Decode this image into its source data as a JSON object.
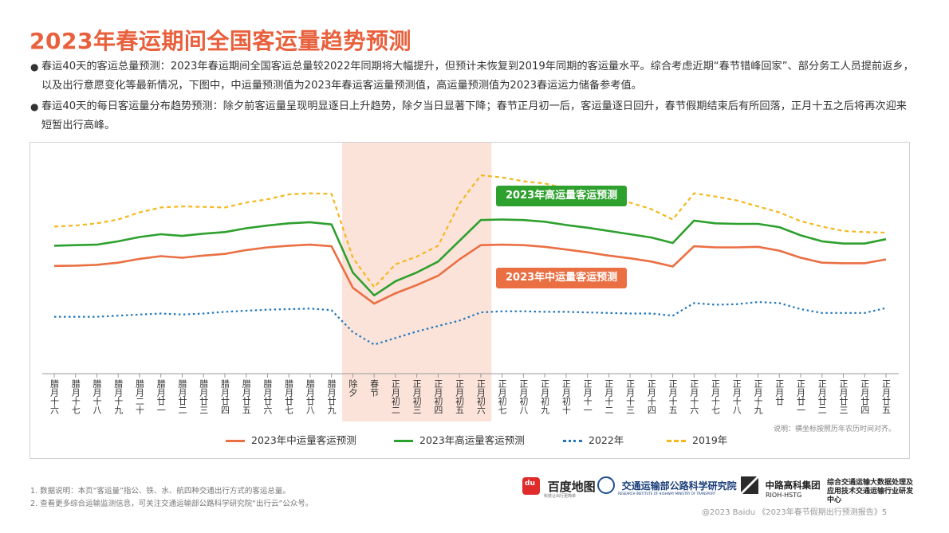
{
  "page": {
    "title": "2023年春运期间全国客运量趋势预测",
    "bullets": [
      "春运40天的客运总量预测：2023年春运期间全国客运总量较2022年同期将大幅提升，但预计未恢复到2019年同期的客运量水平。综合考虑近期“春节错峰回家”、部分务工人员提前返乡，以及出行意愿变化等最新情况，下图中，中运量预测值为2023年春运客运量预测值，高运量预测值为2023春运运力储备参考值。",
      "春运40天的每日客运量分布趋势预测：除夕前客运量呈现明显逐日上升趋势，除夕当日显著下降；春节正月初一后，客运量逐日回升，春节假期结束后有所回落，正月十五之后将再次迎来短暂出行高峰。"
    ],
    "bullet_symbol": "●",
    "note": "说明：横坐标按照历年农历时间对齐。",
    "footnotes": [
      "1.  数据说明：本页“客运量”指公、铁、水、航四种交通出行方式的客运总量。",
      "2.  查看更多综合运输监测信息，可关注交通运输部公路科学研究院“出行云”公众号。"
    ],
    "logos": {
      "baidu": "百度地图",
      "baidu_badge": "du",
      "baidu_sub": "科技让出行更简单",
      "ritm": "交通运输部公路科学研究院",
      "ritm_sub": "RESEARCH INSTITUTE OF HIGHWAY MINISTRY OF TRANSPORT",
      "rioh": "中路高科集团",
      "rioh_sub": "RIOH-HSTG",
      "center": "综合交通运输大数据处理及应用技术交通运输行业研发中心"
    },
    "credit": "@2023 Baidu 《2023年春节假期出行预测报告》5"
  },
  "chart_data": {
    "type": "line",
    "categories": [
      "腊月十六",
      "腊月十七",
      "腊月十八",
      "腊月十九",
      "腊月二十",
      "腊月廿一",
      "腊月廿二",
      "腊月廿三",
      "腊月廿四",
      "腊月廿五",
      "腊月廿六",
      "腊月廿七",
      "腊月廿八",
      "腊月廿九",
      "除夕",
      "春节",
      "正月初二",
      "正月初三",
      "正月初四",
      "正月初五",
      "正月初六",
      "正月初七",
      "正月初八",
      "正月初九",
      "正月初十",
      "正月十一",
      "正月十二",
      "正月十三",
      "正月十四",
      "正月十五",
      "正月十六",
      "正月十七",
      "正月十八",
      "正月十九",
      "正月廿",
      "正月廿一",
      "正月廿二",
      "正月廿三",
      "正月廿四",
      "正月廿五"
    ],
    "highlight": {
      "from": "除夕",
      "to": "正月初六",
      "color": "#fbe3da"
    },
    "series": [
      {
        "name": "2023年中运量客运预测",
        "color": "#ea6f43",
        "style": "solid",
        "values": [
          54.0,
          54.3,
          55.0,
          57.0,
          60.5,
          63.0,
          61.5,
          63.5,
          65.0,
          68.5,
          71.0,
          72.5,
          73.5,
          72.0,
          34.0,
          19.5,
          29.0,
          36.5,
          45.0,
          60.0,
          73.0,
          73.5,
          73.0,
          71.5,
          69.0,
          66.5,
          63.5,
          61.0,
          58.0,
          53.5,
          72.0,
          71.0,
          71.0,
          71.5,
          68.0,
          61.5,
          57.0,
          56.5,
          56.5,
          60.0
        ]
      },
      {
        "name": "2023年高运量客运预测",
        "color": "#2ea02e",
        "style": "solid",
        "values": [
          72.5,
          73.0,
          73.5,
          76.5,
          80.5,
          83.0,
          81.5,
          83.5,
          85.0,
          88.5,
          91.0,
          93.0,
          94.0,
          92.0,
          48.0,
          27.0,
          40.0,
          48.0,
          58.0,
          77.0,
          96.0,
          96.5,
          96.0,
          94.5,
          91.5,
          89.0,
          86.0,
          83.0,
          80.0,
          75.0,
          95.5,
          93.0,
          92.5,
          92.5,
          89.5,
          82.0,
          76.5,
          74.5,
          74.5,
          78.5
        ]
      },
      {
        "name": "2022年",
        "color": "#2277bb",
        "style": "dotted",
        "values": [
          7.5,
          7.5,
          7.5,
          8.5,
          9.5,
          10.5,
          9.5,
          10.5,
          12.0,
          13.0,
          14.0,
          14.5,
          15.0,
          13.5,
          -6.5,
          -18.0,
          -12.0,
          -6.0,
          -1.0,
          4.0,
          11.5,
          12.5,
          12.5,
          12.0,
          12.0,
          11.5,
          11.0,
          10.5,
          10.5,
          8.5,
          20.0,
          18.5,
          19.0,
          21.0,
          20.0,
          14.5,
          11.0,
          11.0,
          11.0,
          15.5
        ]
      },
      {
        "name": "2019年",
        "color": "#f4b81d",
        "style": "dashed",
        "values": [
          90.0,
          91.0,
          93.0,
          96.5,
          103.0,
          107.5,
          108.5,
          108.0,
          107.5,
          112.0,
          115.0,
          119.5,
          120.5,
          120.0,
          61.5,
          34.5,
          55.5,
          62.5,
          72.5,
          111.0,
          137.0,
          135.0,
          131.5,
          129.5,
          125.0,
          120.0,
          115.5,
          112.0,
          106.0,
          96.5,
          120.5,
          117.5,
          114.0,
          108.5,
          103.0,
          95.0,
          90.0,
          86.0,
          85.0,
          84.5
        ]
      }
    ],
    "annotations": [
      {
        "text": "2023年高运量客运预测",
        "series": "2023年高运量客运预测",
        "at": "正月初八"
      },
      {
        "text": "2023年中运量客运预测",
        "series": "2023年中运量客运预测",
        "at": "正月十二"
      }
    ],
    "ylim": [
      -30,
      145
    ],
    "xlabel": "",
    "ylabel": "",
    "grid": false,
    "legend_position": "bottom"
  }
}
